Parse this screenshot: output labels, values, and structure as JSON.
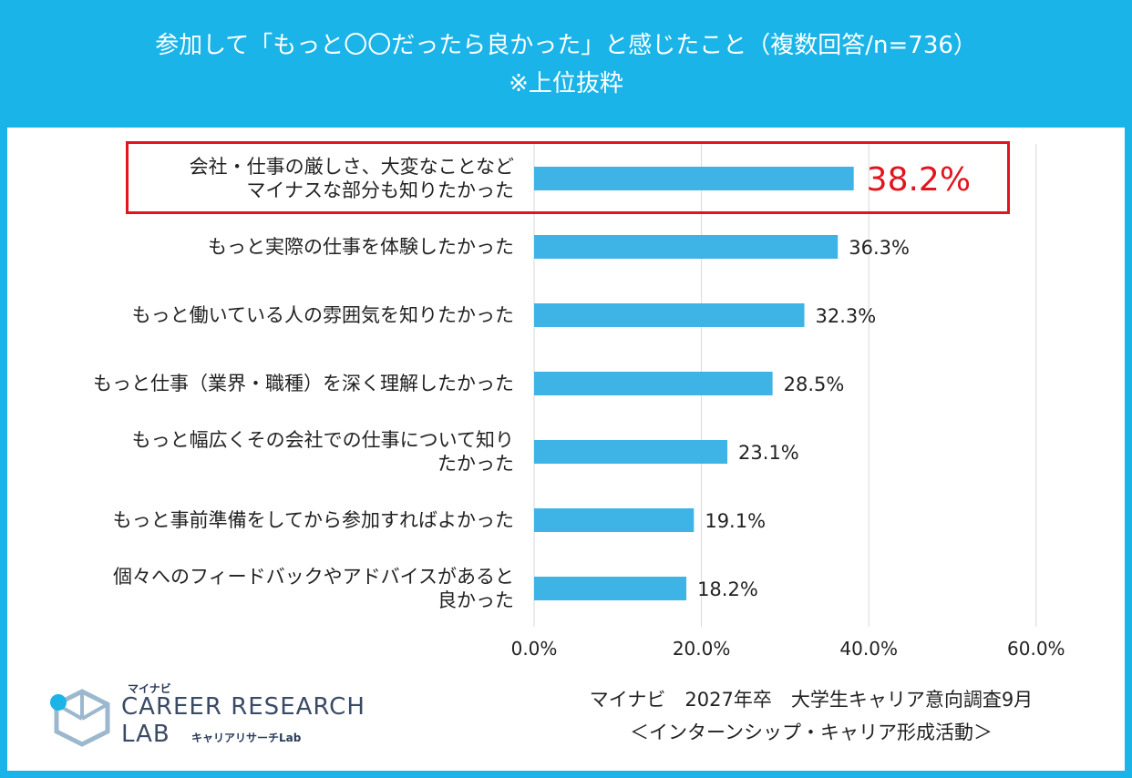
{
  "header": {
    "title_line1": "参加して「もっと〇〇だったら良かった」と感じたこと（複数回答/n=736）",
    "title_line2": "※上位抜粋"
  },
  "chart_data": {
    "type": "bar",
    "orientation": "horizontal",
    "categories": [
      "会社・仕事の厳しさ、大変なことなどマイナスな部分も知りたかった",
      "もっと実際の仕事を体験したかった",
      "もっと働いている人の雰囲気を知りたかった",
      "もっと仕事（業界・職種）を深く理解したかった",
      "もっと幅広くその会社での仕事について知りたかった",
      "もっと事前準備をしてから参加すればよかった",
      "個々へのフィードバックやアドバイスがあると良かった"
    ],
    "category_lines": [
      [
        "会社・仕事の厳しさ、大変なことなど",
        "マイナスな部分も知りたかった"
      ],
      [
        "もっと実際の仕事を体験したかった"
      ],
      [
        "もっと働いている人の雰囲気を知りたかった"
      ],
      [
        "もっと仕事（業界・職種）を深く理解したかった"
      ],
      [
        "もっと幅広くその会社での仕事について知り",
        "たかった"
      ],
      [
        "もっと事前準備をしてから参加すればよかった"
      ],
      [
        "個々へのフィードバックやアドバイスがあると",
        "良かった"
      ]
    ],
    "values": [
      38.2,
      36.3,
      32.3,
      28.5,
      23.1,
      19.1,
      18.2
    ],
    "value_labels": [
      "38.2%",
      "36.3%",
      "32.3%",
      "28.5%",
      "23.1%",
      "19.1%",
      "18.2%"
    ],
    "xlim": [
      0,
      60
    ],
    "xticks": [
      "0.0%",
      "20.0%",
      "40.0%",
      "60.0%"
    ],
    "highlight_index": 0,
    "bar_color": "#3eb4e6",
    "highlight_color": "#e3141e",
    "grid": true
  },
  "source": {
    "line1": "マイナビ　2027年卒　大学生キャリア意向調査9月",
    "line2": "＜インターンシップ・キャリア形成活動＞"
  },
  "logo": {
    "brand_small": "マイナビ",
    "brand_line1": "CAREER RESEARCH",
    "brand_line2": "LAB",
    "brand_sub": "キャリアリサーチLab"
  }
}
